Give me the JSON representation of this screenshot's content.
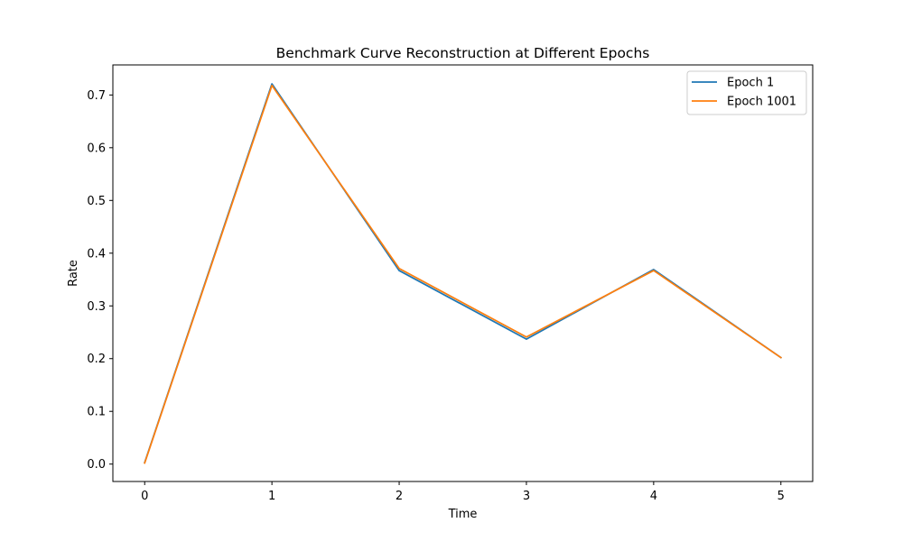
{
  "chart_data": {
    "type": "line",
    "title": "Benchmark Curve Reconstruction at Different Epochs",
    "xlabel": "Time",
    "ylabel": "Rate",
    "x": [
      0,
      1,
      2,
      3,
      4,
      5
    ],
    "series": [
      {
        "name": "Epoch 1",
        "color": "#1f77b4",
        "values": [
          0.003,
          0.721,
          0.367,
          0.237,
          0.369,
          0.202
        ]
      },
      {
        "name": "Epoch 1001",
        "color": "#ff7f0e",
        "values": [
          0.002,
          0.718,
          0.371,
          0.241,
          0.367,
          0.202
        ]
      }
    ],
    "xlim": [
      -0.25,
      5.25
    ],
    "ylim": [
      -0.033,
      0.757
    ],
    "xticks": [
      0,
      1,
      2,
      3,
      4,
      5
    ],
    "yticks": [
      0.0,
      0.1,
      0.2,
      0.3,
      0.4,
      0.5,
      0.6,
      0.7
    ],
    "ytick_labels": [
      "0.0",
      "0.1",
      "0.2",
      "0.3",
      "0.4",
      "0.5",
      "0.6",
      "0.7"
    ],
    "grid": false,
    "legend_position": "top-right"
  }
}
